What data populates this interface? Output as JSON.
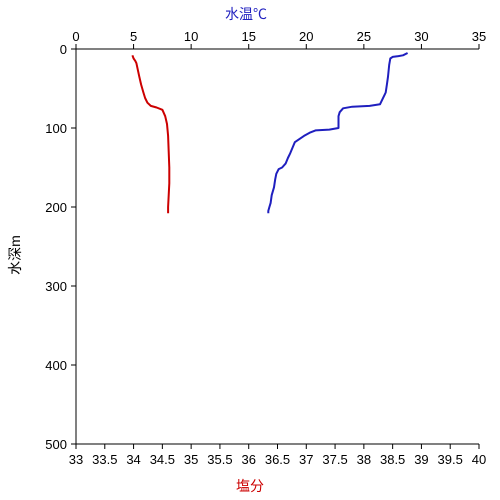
{
  "chart_data": {
    "type": "line",
    "top_axis": {
      "label": "水温℃",
      "label_color": "#1f1fbf",
      "range": [
        0,
        35
      ],
      "ticks": [
        "0",
        "5",
        "10",
        "15",
        "20",
        "25",
        "30",
        "35"
      ]
    },
    "bottom_axis": {
      "label": "塩分",
      "label_color": "#cc0000",
      "range": [
        33,
        40
      ],
      "ticks": [
        "33",
        "33.5",
        "34",
        "34.5",
        "35",
        "35.5",
        "36",
        "36.5",
        "37",
        "37.5",
        "38",
        "38.5",
        "39",
        "39.5",
        "40"
      ]
    },
    "y_axis": {
      "label": "水深m",
      "range": [
        0,
        500
      ],
      "inverted": true,
      "ticks": [
        "0",
        "100",
        "200",
        "300",
        "400",
        "500"
      ]
    },
    "grid": false,
    "series": [
      {
        "color": "#1f1fbf",
        "x_axis": "top",
        "points": [
          [
            28.8,
            5
          ],
          [
            28.4,
            8
          ],
          [
            28.0,
            9
          ],
          [
            27.5,
            10
          ],
          [
            27.3,
            12
          ],
          [
            27.2,
            20
          ],
          [
            27.1,
            35
          ],
          [
            27.0,
            45
          ],
          [
            26.9,
            55
          ],
          [
            26.8,
            58
          ],
          [
            26.6,
            64
          ],
          [
            26.4,
            70
          ],
          [
            25.5,
            72
          ],
          [
            24.0,
            73
          ],
          [
            23.2,
            75
          ],
          [
            22.9,
            80
          ],
          [
            22.8,
            85
          ],
          [
            22.8,
            100
          ],
          [
            22.0,
            102
          ],
          [
            20.8,
            103
          ],
          [
            20.3,
            106
          ],
          [
            19.8,
            110
          ],
          [
            19.5,
            113
          ],
          [
            19.0,
            118
          ],
          [
            18.8,
            125
          ],
          [
            18.6,
            132
          ],
          [
            18.4,
            138
          ],
          [
            18.2,
            145
          ],
          [
            17.9,
            150
          ],
          [
            17.6,
            152
          ],
          [
            17.4,
            158
          ],
          [
            17.3,
            165
          ],
          [
            17.2,
            175
          ],
          [
            17.0,
            185
          ],
          [
            16.9,
            195
          ],
          [
            16.8,
            200
          ],
          [
            16.7,
            205
          ],
          [
            16.7,
            208
          ]
        ]
      },
      {
        "color": "#cc0000",
        "x_axis": "bottom",
        "points": [
          [
            33.98,
            8
          ],
          [
            34.0,
            12
          ],
          [
            34.03,
            15
          ],
          [
            34.05,
            18
          ],
          [
            34.07,
            25
          ],
          [
            34.1,
            35
          ],
          [
            34.13,
            45
          ],
          [
            34.17,
            55
          ],
          [
            34.2,
            62
          ],
          [
            34.24,
            68
          ],
          [
            34.3,
            72
          ],
          [
            34.4,
            74
          ],
          [
            34.5,
            77
          ],
          [
            34.55,
            85
          ],
          [
            34.58,
            95
          ],
          [
            34.6,
            110
          ],
          [
            34.61,
            130
          ],
          [
            34.62,
            150
          ],
          [
            34.62,
            170
          ],
          [
            34.61,
            185
          ],
          [
            34.6,
            200
          ],
          [
            34.6,
            208
          ]
        ]
      }
    ]
  }
}
